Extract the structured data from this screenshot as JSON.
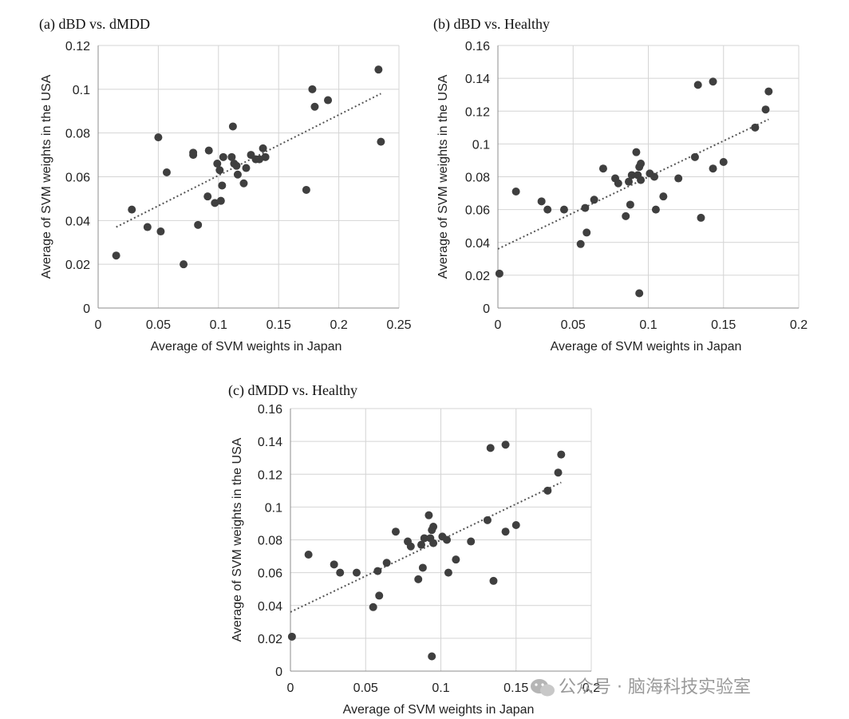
{
  "chart_data": [
    {
      "type": "scatter",
      "title": "(a) dBD vs. dMDD",
      "xlabel": "Average of SVM weights in Japan",
      "ylabel": "Average of SVM weights in the USA",
      "xlim": [
        0,
        0.25
      ],
      "ylim": [
        0,
        0.12
      ],
      "xticks": [
        "0",
        "0.05",
        "0.1",
        "0.15",
        "0.2",
        "0.25"
      ],
      "yticks": [
        "0",
        "0.02",
        "0.04",
        "0.06",
        "0.08",
        "0.1",
        "0.12"
      ],
      "grid": true,
      "trendline": {
        "style": "dotted",
        "x": [
          0.015,
          0.235
        ],
        "y": [
          0.037,
          0.098
        ]
      },
      "points": [
        [
          0.015,
          0.024
        ],
        [
          0.028,
          0.045
        ],
        [
          0.041,
          0.037
        ],
        [
          0.05,
          0.078
        ],
        [
          0.052,
          0.035
        ],
        [
          0.057,
          0.062
        ],
        [
          0.071,
          0.02
        ],
        [
          0.079,
          0.07
        ],
        [
          0.079,
          0.071
        ],
        [
          0.083,
          0.038
        ],
        [
          0.091,
          0.051
        ],
        [
          0.092,
          0.072
        ],
        [
          0.097,
          0.048
        ],
        [
          0.099,
          0.066
        ],
        [
          0.101,
          0.063
        ],
        [
          0.102,
          0.049
        ],
        [
          0.103,
          0.056
        ],
        [
          0.104,
          0.069
        ],
        [
          0.111,
          0.069
        ],
        [
          0.112,
          0.083
        ],
        [
          0.113,
          0.066
        ],
        [
          0.115,
          0.065
        ],
        [
          0.116,
          0.061
        ],
        [
          0.121,
          0.057
        ],
        [
          0.123,
          0.064
        ],
        [
          0.127,
          0.07
        ],
        [
          0.131,
          0.068
        ],
        [
          0.134,
          0.068
        ],
        [
          0.137,
          0.073
        ],
        [
          0.139,
          0.069
        ],
        [
          0.173,
          0.054
        ],
        [
          0.178,
          0.1
        ],
        [
          0.18,
          0.092
        ],
        [
          0.191,
          0.095
        ],
        [
          0.233,
          0.109
        ],
        [
          0.235,
          0.076
        ]
      ]
    },
    {
      "type": "scatter",
      "title": "(b) dBD vs. Healthy",
      "xlabel": "Average of SVM weights in Japan",
      "ylabel": "Average of SVM weights in the USA",
      "xlim": [
        0,
        0.2
      ],
      "ylim": [
        0,
        0.16
      ],
      "xticks": [
        "0",
        "0.05",
        "0.1",
        "0.15",
        "0.2"
      ],
      "yticks": [
        "0",
        "0.02",
        "0.04",
        "0.06",
        "0.08",
        "0.1",
        "0.12",
        "0.14",
        "0.16"
      ],
      "grid": true,
      "trendline": {
        "style": "dotted",
        "x": [
          0.0,
          0.18
        ],
        "y": [
          0.036,
          0.115
        ]
      },
      "points": [
        [
          0.001,
          0.021
        ],
        [
          0.012,
          0.071
        ],
        [
          0.029,
          0.065
        ],
        [
          0.033,
          0.06
        ],
        [
          0.044,
          0.06
        ],
        [
          0.055,
          0.039
        ],
        [
          0.058,
          0.061
        ],
        [
          0.059,
          0.046
        ],
        [
          0.064,
          0.066
        ],
        [
          0.07,
          0.085
        ],
        [
          0.078,
          0.079
        ],
        [
          0.08,
          0.076
        ],
        [
          0.085,
          0.056
        ],
        [
          0.087,
          0.077
        ],
        [
          0.088,
          0.063
        ],
        [
          0.089,
          0.081
        ],
        [
          0.092,
          0.095
        ],
        [
          0.093,
          0.081
        ],
        [
          0.094,
          0.086
        ],
        [
          0.095,
          0.088
        ],
        [
          0.095,
          0.078
        ],
        [
          0.094,
          0.009
        ],
        [
          0.101,
          0.082
        ],
        [
          0.104,
          0.08
        ],
        [
          0.105,
          0.06
        ],
        [
          0.11,
          0.068
        ],
        [
          0.12,
          0.079
        ],
        [
          0.131,
          0.092
        ],
        [
          0.133,
          0.136
        ],
        [
          0.135,
          0.055
        ],
        [
          0.143,
          0.138
        ],
        [
          0.143,
          0.085
        ],
        [
          0.15,
          0.089
        ],
        [
          0.171,
          0.11
        ],
        [
          0.178,
          0.121
        ],
        [
          0.18,
          0.132
        ]
      ]
    },
    {
      "type": "scatter",
      "title": "(c) dMDD vs. Healthy",
      "xlabel": "Average of SVM weights in Japan",
      "ylabel": "Average of SVM weights in the USA",
      "xlim": [
        0,
        0.2
      ],
      "ylim": [
        0,
        0.16
      ],
      "xticks": [
        "0",
        "0.05",
        "0.1",
        "0.15",
        "0.2"
      ],
      "yticks": [
        "0",
        "0.02",
        "0.04",
        "0.06",
        "0.08",
        "0.1",
        "0.12",
        "0.14",
        "0.16"
      ],
      "grid": true,
      "trendline": {
        "style": "dotted",
        "x": [
          0.0,
          0.18
        ],
        "y": [
          0.036,
          0.115
        ]
      },
      "points": [
        [
          0.001,
          0.021
        ],
        [
          0.012,
          0.071
        ],
        [
          0.029,
          0.065
        ],
        [
          0.033,
          0.06
        ],
        [
          0.044,
          0.06
        ],
        [
          0.055,
          0.039
        ],
        [
          0.058,
          0.061
        ],
        [
          0.059,
          0.046
        ],
        [
          0.064,
          0.066
        ],
        [
          0.07,
          0.085
        ],
        [
          0.078,
          0.079
        ],
        [
          0.08,
          0.076
        ],
        [
          0.085,
          0.056
        ],
        [
          0.087,
          0.077
        ],
        [
          0.088,
          0.063
        ],
        [
          0.089,
          0.081
        ],
        [
          0.092,
          0.095
        ],
        [
          0.093,
          0.081
        ],
        [
          0.094,
          0.086
        ],
        [
          0.095,
          0.088
        ],
        [
          0.095,
          0.078
        ],
        [
          0.094,
          0.009
        ],
        [
          0.101,
          0.082
        ],
        [
          0.104,
          0.08
        ],
        [
          0.105,
          0.06
        ],
        [
          0.11,
          0.068
        ],
        [
          0.12,
          0.079
        ],
        [
          0.131,
          0.092
        ],
        [
          0.133,
          0.136
        ],
        [
          0.135,
          0.055
        ],
        [
          0.143,
          0.138
        ],
        [
          0.143,
          0.085
        ],
        [
          0.15,
          0.089
        ],
        [
          0.171,
          0.11
        ],
        [
          0.178,
          0.121
        ],
        [
          0.18,
          0.132
        ]
      ]
    }
  ],
  "watermark": {
    "text": "公众号 · 脑海科技实验室",
    "icon": "wechat-icon"
  }
}
